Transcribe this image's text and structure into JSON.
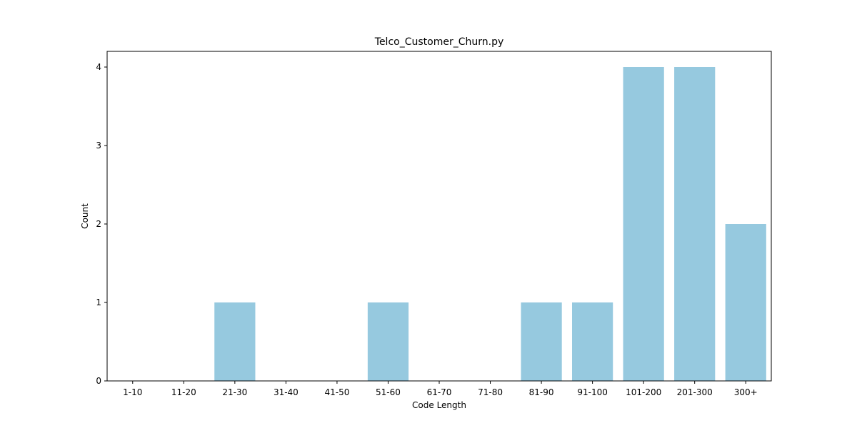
{
  "chart_data": {
    "type": "bar",
    "title": "Telco_Customer_Churn.py",
    "xlabel": "Code Length",
    "ylabel": "Count",
    "categories": [
      "1-10",
      "11-20",
      "21-30",
      "31-40",
      "41-50",
      "51-60",
      "61-70",
      "71-80",
      "81-90",
      "91-100",
      "101-200",
      "201-300",
      "300+"
    ],
    "values": [
      0,
      0,
      1,
      0,
      0,
      1,
      0,
      0,
      1,
      1,
      4,
      4,
      2
    ],
    "ylim": [
      0,
      4.2
    ],
    "yticks": [
      0,
      1,
      2,
      3,
      4
    ],
    "bar_color": "#96c9df",
    "grid": false,
    "legend": "none"
  }
}
